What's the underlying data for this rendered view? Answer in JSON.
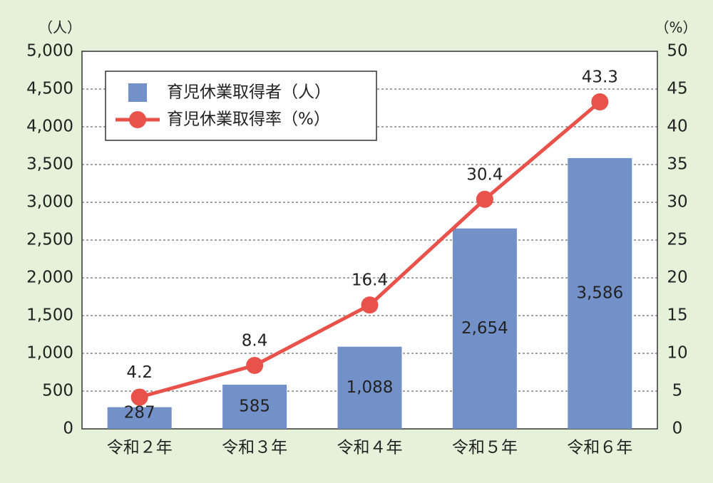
{
  "chart_data": {
    "type": "bar",
    "y_unit": "（人）",
    "y2_unit": "（%）",
    "categories": [
      "令和２年",
      "令和３年",
      "令和４年",
      "令和５年",
      "令和６年"
    ],
    "series": [
      {
        "name": "育児休業取得者（人）",
        "type": "bar",
        "color": "#7391c9",
        "values": [
          287,
          585,
          1088,
          2654,
          3586
        ],
        "value_labels": [
          "287",
          "585",
          "1,088",
          "2,654",
          "3,586"
        ]
      },
      {
        "name": "育児休業取得率（%）",
        "type": "line",
        "axis": "y2",
        "color": "#e8524a",
        "values": [
          4.2,
          8.4,
          16.4,
          30.4,
          43.3
        ]
      }
    ],
    "ylim": [
      0,
      5000
    ],
    "yticks": [
      0,
      500,
      {
        "value": 1000,
        "label": "1,000"
      },
      {
        "value": 1500,
        "label": "1,500"
      },
      {
        "value": 2000,
        "label": "2,000"
      },
      {
        "value": 2500,
        "label": "2,500"
      },
      {
        "value": 3000,
        "label": "3,000"
      },
      {
        "value": 3500,
        "label": "3,500"
      },
      {
        "value": 4000,
        "label": "4,000"
      },
      {
        "value": 4500,
        "label": "4,500"
      },
      {
        "value": 5000,
        "label": "5,000"
      }
    ],
    "y2lim": [
      0,
      50
    ],
    "y2ticks": [
      0,
      5,
      10,
      15,
      20,
      25,
      30,
      35,
      40,
      45,
      50
    ],
    "grid": true,
    "legend": "upper left"
  }
}
